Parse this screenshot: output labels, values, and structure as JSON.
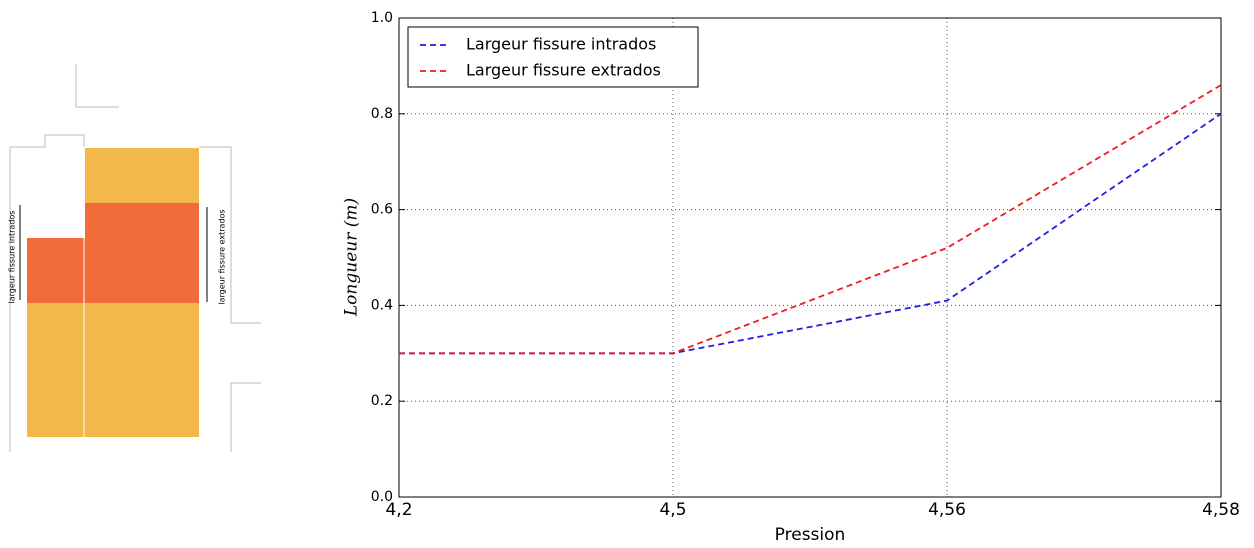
{
  "diagram": {
    "labels": [
      "largeur fissure intrados",
      "largeur fissure extrados"
    ]
  },
  "chart_data": {
    "type": "line",
    "x_label": "Pression",
    "y_label": "Longueur (m)",
    "categories": [
      "4,2",
      "4,5",
      "4,56",
      "4,58"
    ],
    "series": [
      {
        "name": "Largeur fissure intrados",
        "color": "#2020e0",
        "values": [
          0.3,
          0.3,
          0.41,
          0.8
        ]
      },
      {
        "name": "Largeur fissure extrados",
        "color": "#ee1c24",
        "values": [
          0.3,
          0.3,
          0.52,
          0.86
        ]
      }
    ],
    "ylim": [
      0,
      1
    ],
    "yticks": [
      {
        "value": 0,
        "label": "0.0"
      },
      0.2,
      0.4,
      0.6,
      0.8,
      {
        "value": 1,
        "label": "1.0"
      }
    ],
    "grid": true,
    "legend": "upper left",
    "line_style": "dashed"
  }
}
